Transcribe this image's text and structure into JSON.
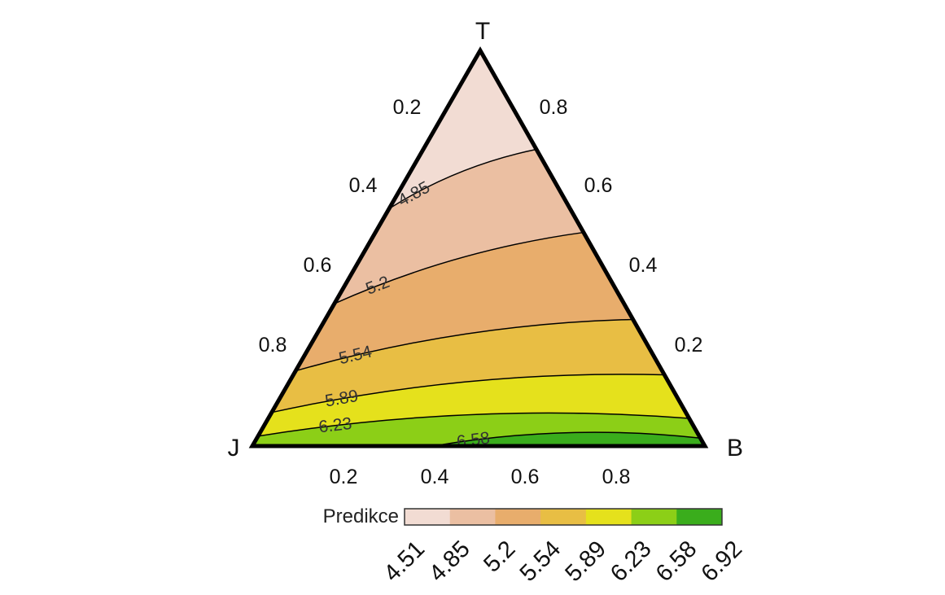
{
  "chart_data": {
    "type": "ternary_contour",
    "vertices": {
      "top": "T",
      "left": "J",
      "right": "B"
    },
    "axis_ticks": {
      "left_edge": [
        "0.2",
        "0.4",
        "0.6",
        "0.8"
      ],
      "right_edge": [
        "0.8",
        "0.6",
        "0.4",
        "0.2"
      ],
      "bottom_edge": [
        "0.2",
        "0.4",
        "0.6",
        "0.8"
      ]
    },
    "contour_levels": [
      {
        "value": 4.85,
        "label": "4.85",
        "left_T": 0.6,
        "right_T": 0.75
      },
      {
        "value": 5.2,
        "label": "5.2",
        "left_T": 0.36,
        "right_T": 0.54
      },
      {
        "value": 5.54,
        "label": "5.54",
        "left_T": 0.19,
        "right_T": 0.32
      },
      {
        "value": 5.89,
        "label": "5.89",
        "left_T": 0.085,
        "right_T": 0.18
      },
      {
        "value": 6.23,
        "label": "6.23",
        "left_T": 0.025,
        "right_T": 0.07
      },
      {
        "value": 6.58,
        "label": "6.58",
        "bottom_B": 0.4,
        "right_T": 0.02
      }
    ],
    "legend": {
      "title": "Predikce",
      "breaks": [
        "4.51",
        "4.85",
        "5.2",
        "5.54",
        "5.89",
        "6.23",
        "6.58",
        "6.92"
      ],
      "colors": [
        "#f2dcd3",
        "#ebbfa2",
        "#e8ad6c",
        "#e8be44",
        "#e5e11c",
        "#8ccf17",
        "#3aad1c"
      ]
    }
  }
}
